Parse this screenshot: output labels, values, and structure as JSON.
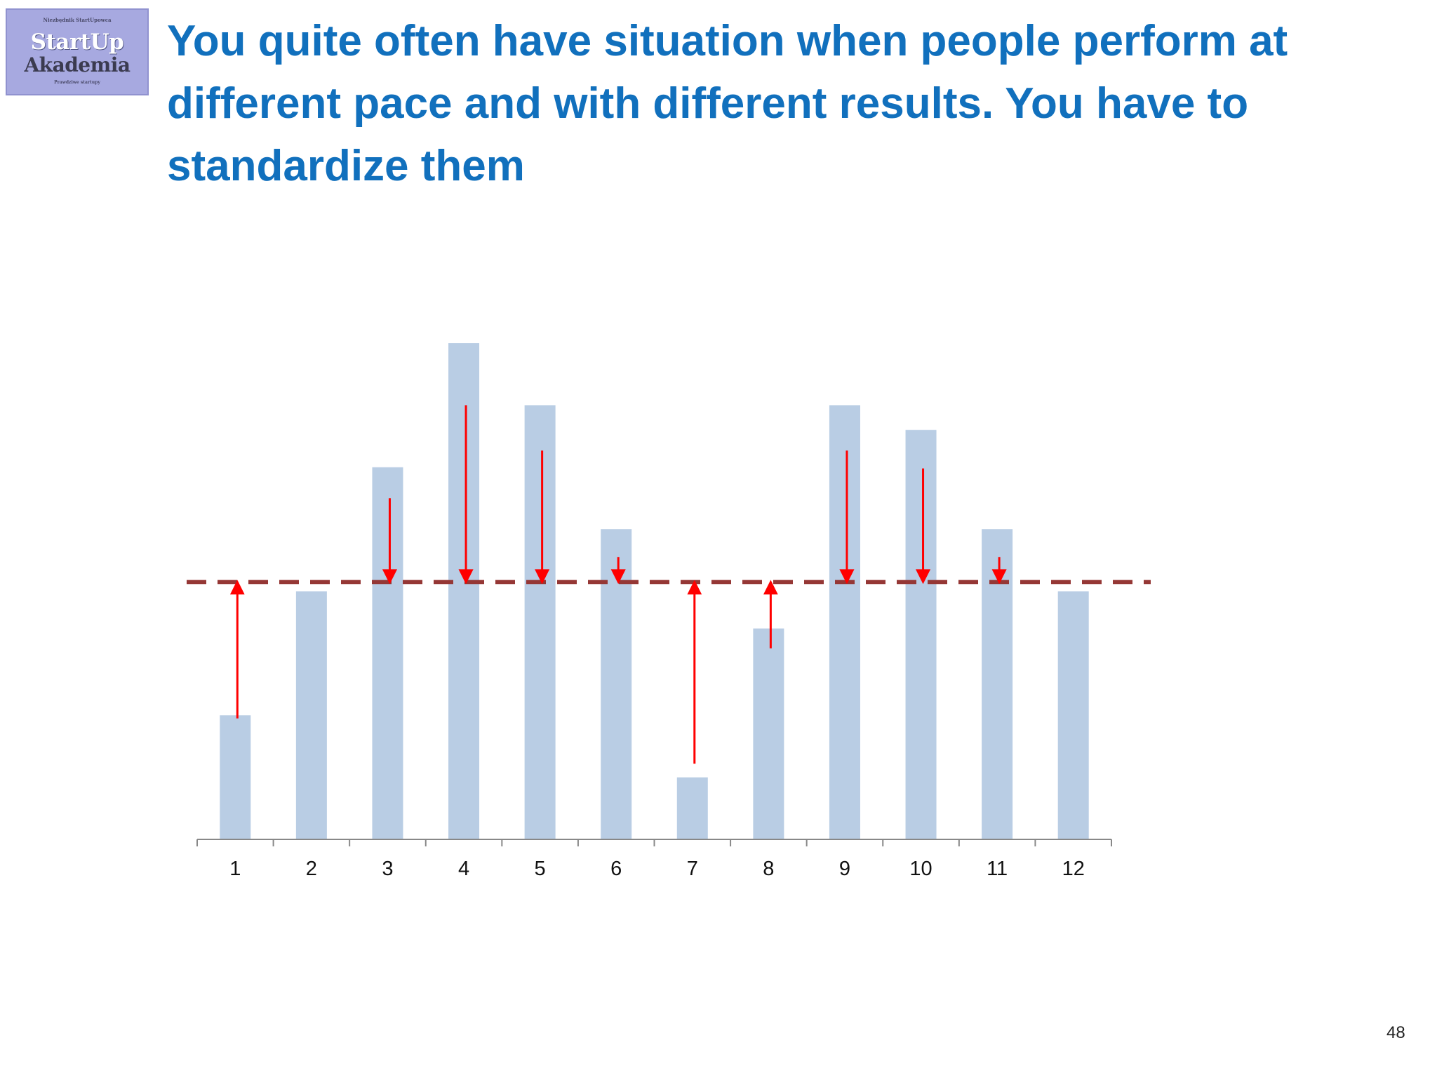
{
  "logo": {
    "top_text": "Niezbędnik StartUpowca",
    "line1": "StartUp",
    "line2": "Akademia",
    "bottom_text": "Prawdziwe startupy"
  },
  "title": "You quite often have situation when people perform at different pace and with different results. You have to standardize them",
  "page_number": "48",
  "chart_data": {
    "type": "bar",
    "categories": [
      "1",
      "2",
      "3",
      "4",
      "5",
      "6",
      "7",
      "8",
      "9",
      "10",
      "11",
      "12"
    ],
    "values": [
      2.0,
      4.0,
      6.0,
      8.0,
      7.0,
      5.0,
      1.0,
      3.4,
      7.0,
      6.6,
      5.0,
      4.0
    ],
    "ylim": [
      0,
      8.0
    ],
    "standard_line": 4.15,
    "arrows": [
      {
        "category": "1",
        "from": 1.95,
        "to": 4.15,
        "direction": "up"
      },
      {
        "category": "3",
        "from": 5.5,
        "to": 4.15,
        "direction": "down"
      },
      {
        "category": "4",
        "from": 7.0,
        "to": 4.15,
        "direction": "down"
      },
      {
        "category": "5",
        "from": 6.27,
        "to": 4.15,
        "direction": "down"
      },
      {
        "category": "6",
        "from": 4.55,
        "to": 4.15,
        "direction": "down"
      },
      {
        "category": "7",
        "from": 1.22,
        "to": 4.15,
        "direction": "up"
      },
      {
        "category": "8",
        "from": 3.08,
        "to": 4.15,
        "direction": "up"
      },
      {
        "category": "9",
        "from": 6.27,
        "to": 4.15,
        "direction": "down"
      },
      {
        "category": "10",
        "from": 5.98,
        "to": 4.15,
        "direction": "down"
      },
      {
        "category": "11",
        "from": 4.55,
        "to": 4.15,
        "direction": "down"
      }
    ],
    "colors": {
      "bar": "#b9cde4",
      "standard_line": "#953735",
      "arrow": "#ff0000",
      "axis": "#888888"
    }
  }
}
